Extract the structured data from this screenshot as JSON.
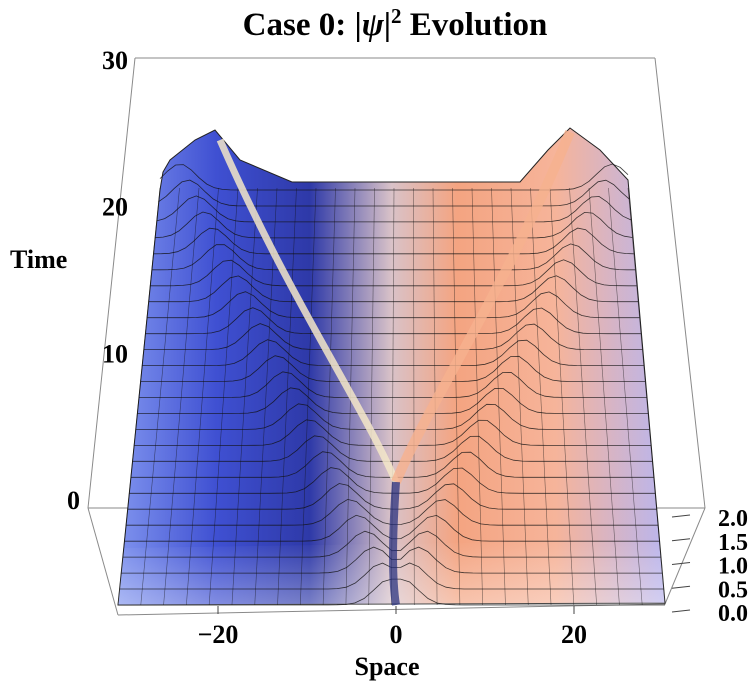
{
  "chart_data": {
    "type": "surface3d",
    "title": "Case 0: |ψ|² Evolution",
    "title_parts": {
      "prefix": "Case 0: |",
      "psi": "ψ",
      "bar": "|",
      "sup": "2",
      "suffix": " Evolution"
    },
    "xlabel": "Space",
    "ylabel": "Time",
    "zlabel": "",
    "x_range": [
      -30,
      30
    ],
    "time_range": [
      0,
      30
    ],
    "z_range": [
      0,
      2.0
    ],
    "x_ticks": [
      {
        "label": "−20",
        "value": -20
      },
      {
        "label": "0",
        "value": 0
      },
      {
        "label": "20",
        "value": 20
      }
    ],
    "time_ticks": [
      {
        "label": "0",
        "value": 0
      },
      {
        "label": "10",
        "value": 10
      },
      {
        "label": "20",
        "value": 20
      },
      {
        "label": "30",
        "value": 30
      }
    ],
    "z_ticks": [
      {
        "label": "0.0",
        "value": 0.0
      },
      {
        "label": "0.5",
        "value": 0.5
      },
      {
        "label": "1.0",
        "value": 1.0
      },
      {
        "label": "1.5",
        "value": 1.5
      },
      {
        "label": "2.0",
        "value": 2.0
      }
    ],
    "surface_description_series": [
      {
        "name": "left-beam-peak",
        "x_at_t0": 0,
        "x_at_t22": -20,
        "height": 1.0
      },
      {
        "name": "right-beam-peak",
        "x_at_t0": 0,
        "x_at_t22": 20,
        "height": 1.0
      }
    ],
    "colors": {
      "background": "#ffffff",
      "axis": "#555555",
      "mesh": "#000000",
      "blue": "#3c4fcf",
      "orange": "#f3a07c"
    }
  }
}
